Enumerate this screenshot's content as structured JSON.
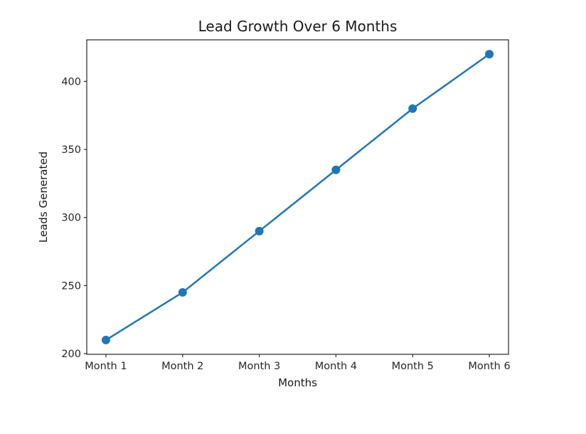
{
  "chart_data": {
    "type": "line",
    "title": "Lead Growth Over 6 Months",
    "xlabel": "Months",
    "ylabel": "Leads Generated",
    "categories": [
      "Month 1",
      "Month 2",
      "Month 3",
      "Month 4",
      "Month 5",
      "Month 6"
    ],
    "series": [
      {
        "name": "Leads Generated",
        "values": [
          210,
          245,
          290,
          335,
          380,
          420
        ]
      }
    ],
    "yticks": [
      200,
      250,
      300,
      350,
      400
    ],
    "ylim": [
      199.5,
      430.5
    ],
    "line_color": "#1f77b4",
    "marker": "o",
    "axis_color": "#262626",
    "text_color": "#262626",
    "grid": false,
    "legend": null
  }
}
